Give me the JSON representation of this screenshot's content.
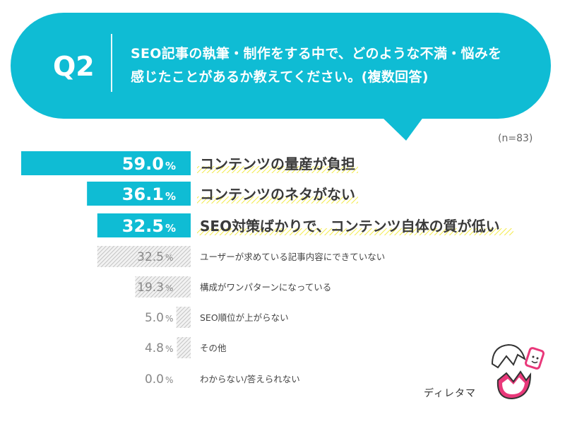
{
  "question": {
    "number": "Q2",
    "line1": "SEO記事の執筆・制作をする中で、どのような不満・悩みを",
    "line2": "感じたことがあるか教えてください。(複数回答)"
  },
  "sample_size": "(n=83)",
  "brand": "ディレタマ",
  "colors": {
    "accent": "#0fbcd4",
    "highlight": "#f3ea4a",
    "hatched": "#b8b8b8"
  },
  "chart_data": {
    "type": "bar",
    "orientation": "horizontal",
    "categories": [
      "コンテンツの量産が負担",
      "コンテンツのネタがない",
      "SEO対策ばかりで、コンテンツ自体の質が低い",
      "ユーザーが求めている記事内容にできていない",
      "構成がワンパターンになっている",
      "SEO順位が上がらない",
      "その他",
      "わからない/答えられない"
    ],
    "values": [
      59.0,
      36.1,
      32.5,
      32.5,
      19.3,
      5.0,
      4.8,
      0.0
    ],
    "value_labels": [
      "59.0",
      "36.1",
      "32.5",
      "32.5",
      "19.3",
      "5.0",
      "4.8",
      "0.0"
    ],
    "unit": "%",
    "highlighted_top": 3,
    "xlim": [
      0,
      59.0
    ]
  }
}
